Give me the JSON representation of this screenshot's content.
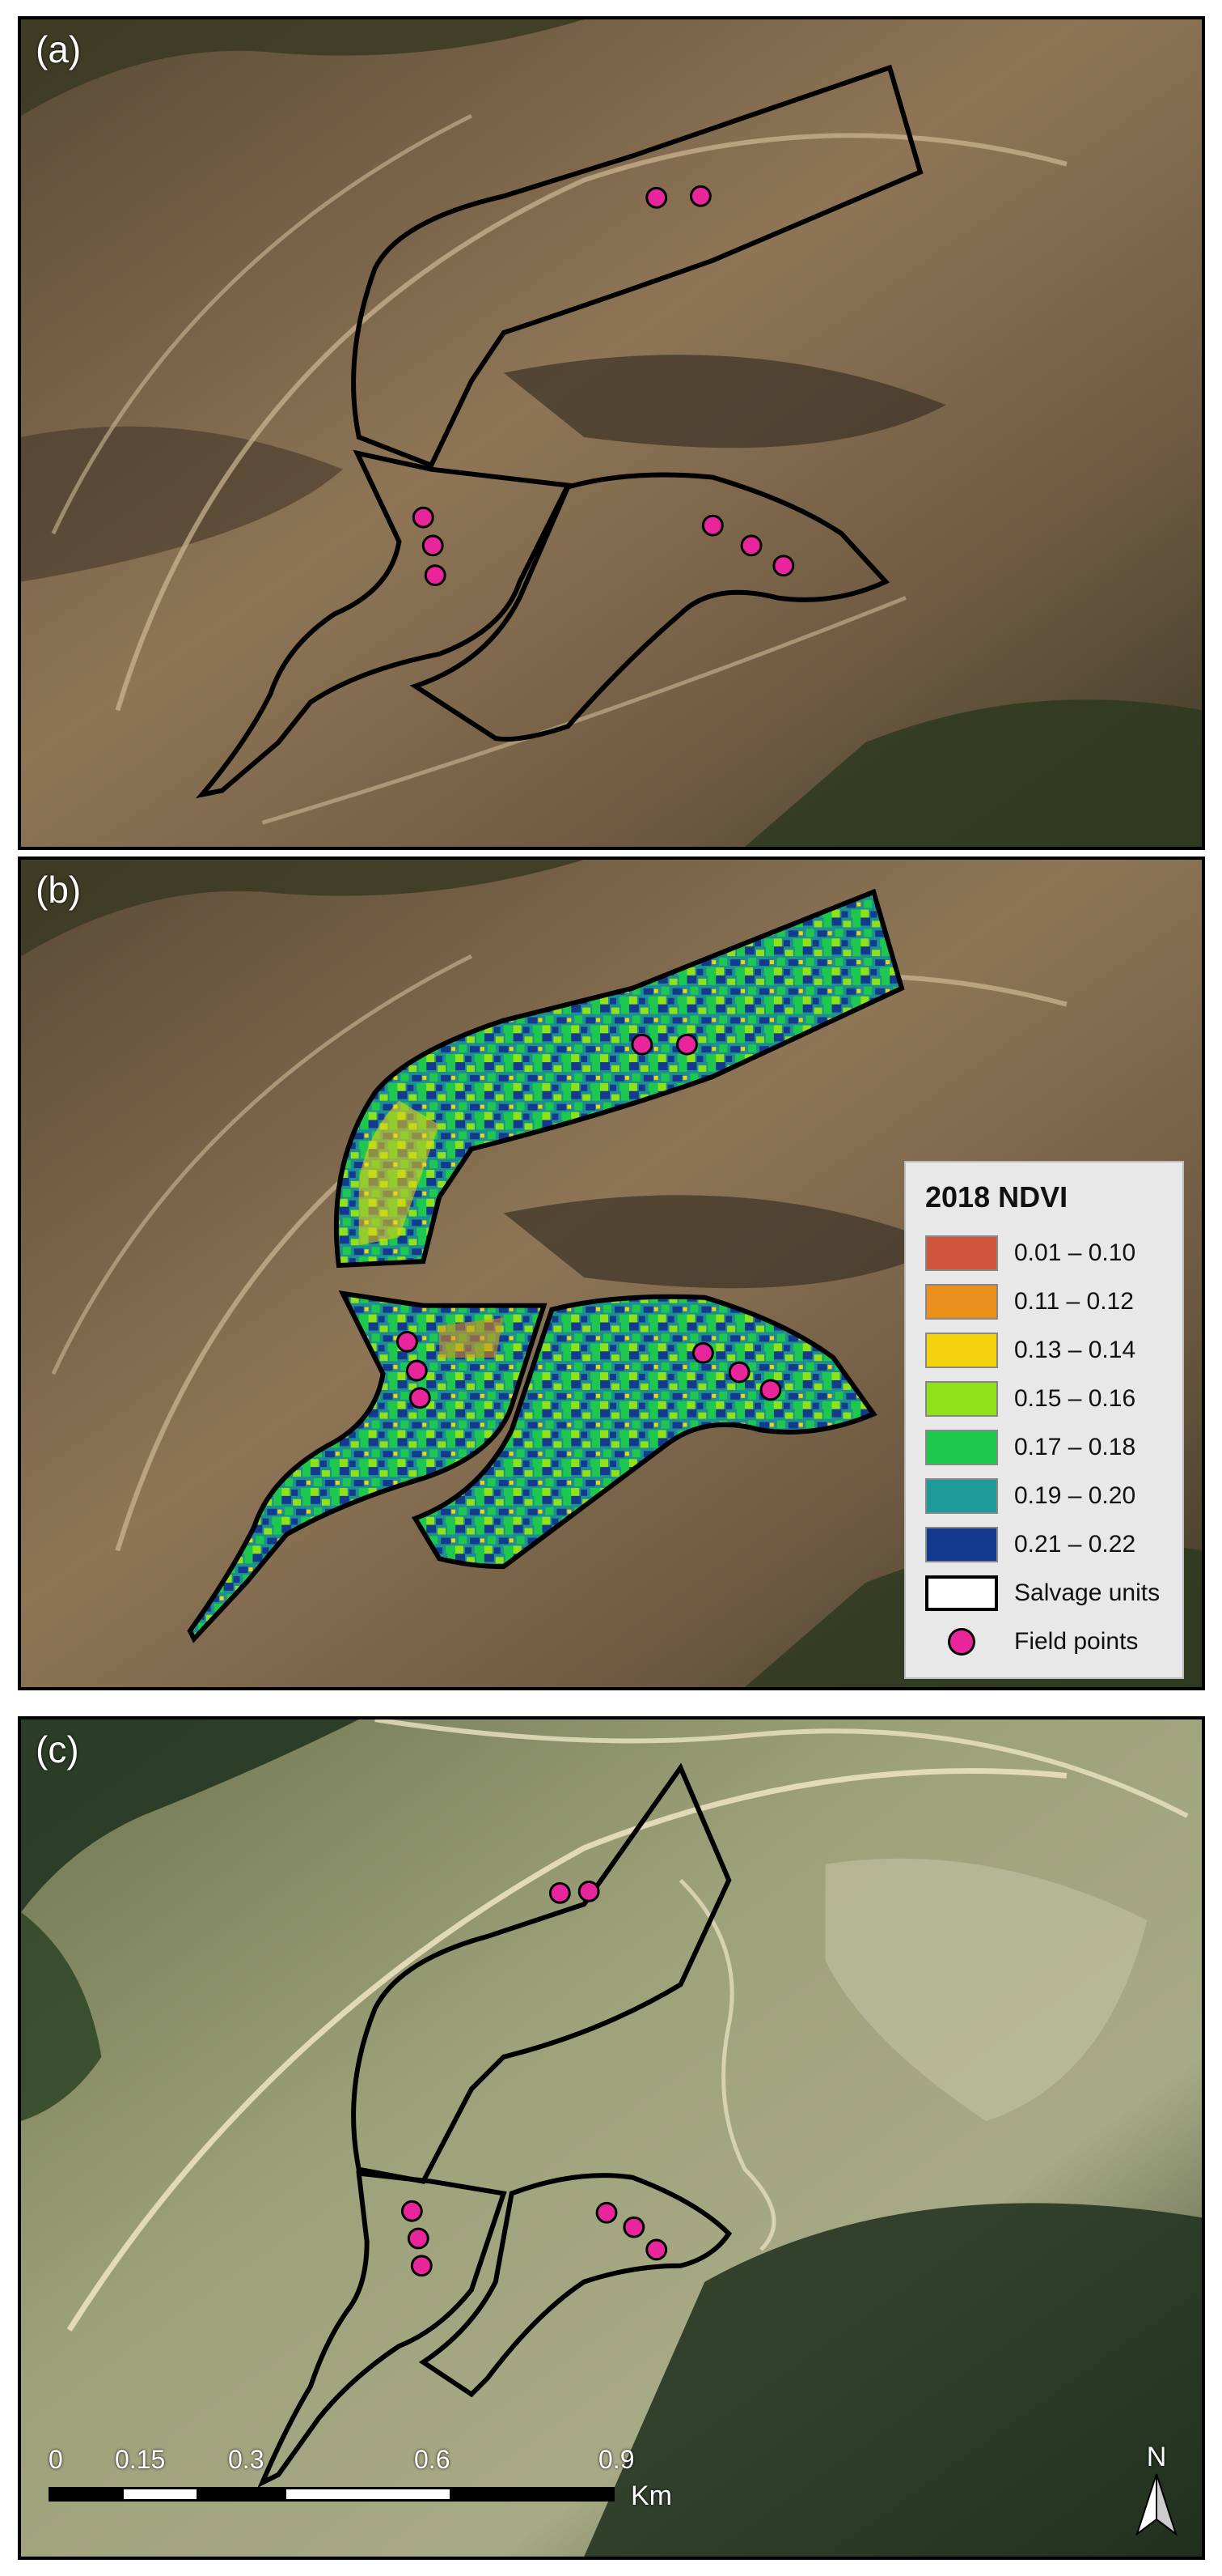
{
  "panels": {
    "a": {
      "label": "(a)"
    },
    "b": {
      "label": "(b)"
    },
    "c": {
      "label": "(c)"
    }
  },
  "legend": {
    "title": "2018 NDVI",
    "classes": [
      {
        "label": "0.01 – 0.10",
        "color": "#d0553e"
      },
      {
        "label": "0.11 – 0.12",
        "color": "#ea8e1c"
      },
      {
        "label": "0.13 – 0.14",
        "color": "#f5d20e"
      },
      {
        "label": "0.15 – 0.16",
        "color": "#8fe21a"
      },
      {
        "label": "0.17 – 0.18",
        "color": "#1ec84f"
      },
      {
        "label": "0.19 – 0.20",
        "color": "#1f9a9a"
      },
      {
        "label": "0.21 – 0.22",
        "color": "#143a8f"
      }
    ],
    "salvage_units_label": "Salvage units",
    "field_points_label": "Field points"
  },
  "scalebar": {
    "ticks": [
      "0",
      "0.15",
      "0.3",
      "0.6",
      "0.9"
    ],
    "unit": "Km"
  },
  "north_arrow": {
    "label": "N",
    "icon": "north-arrow-icon"
  },
  "colors": {
    "field_point": "#e8259b",
    "unit_outline": "#000000"
  }
}
